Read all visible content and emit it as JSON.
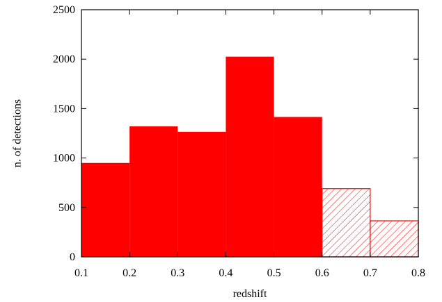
{
  "chart_data": {
    "type": "bar",
    "xlabel": "redshift",
    "ylabel": "n. of detections",
    "xlim": [
      0.1,
      0.8
    ],
    "ylim": [
      0,
      2500
    ],
    "xticks": [
      "0.1",
      "0.2",
      "0.3",
      "0.4",
      "0.5",
      "0.6",
      "0.7",
      "0.8"
    ],
    "yticks": [
      "0",
      "500",
      "1000",
      "1500",
      "2000",
      "2500"
    ],
    "grid": false,
    "legend": "none",
    "bins": [
      {
        "x0": 0.1,
        "x1": 0.2,
        "value": 950,
        "fill": "solid"
      },
      {
        "x0": 0.2,
        "x1": 0.3,
        "value": 1320,
        "fill": "solid"
      },
      {
        "x0": 0.3,
        "x1": 0.4,
        "value": 1265,
        "fill": "solid"
      },
      {
        "x0": 0.4,
        "x1": 0.5,
        "value": 2025,
        "fill": "solid"
      },
      {
        "x0": 0.5,
        "x1": 0.6,
        "value": 1415,
        "fill": "solid"
      },
      {
        "x0": 0.6,
        "x1": 0.7,
        "value": 690,
        "fill": "hatched"
      },
      {
        "x0": 0.7,
        "x1": 0.8,
        "value": 365,
        "fill": "hatched"
      }
    ],
    "color": "#ff0000"
  }
}
